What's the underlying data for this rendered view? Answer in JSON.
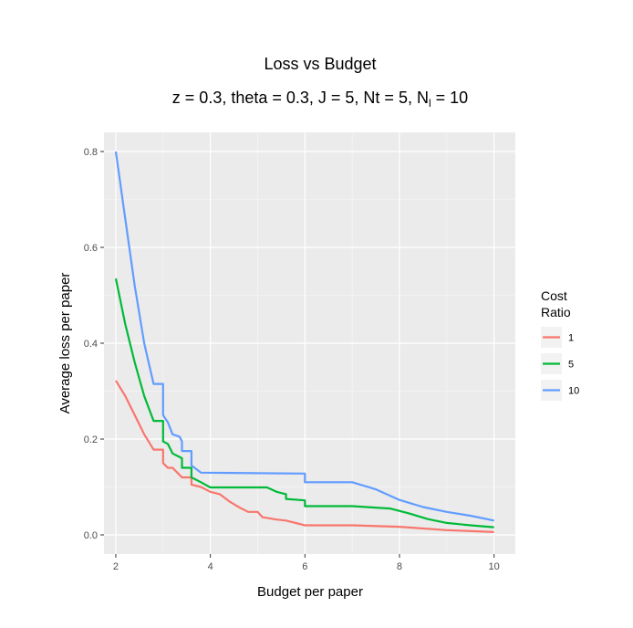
{
  "chart_data": {
    "type": "line",
    "title": "Loss vs Budget",
    "subtitle_parts": [
      "z = 0.3, theta = 0.3, J = 5, Nt = 5, N",
      "l",
      " = 10"
    ],
    "xlabel": "Budget per paper",
    "ylabel": "Average loss per paper",
    "xlim": [
      1.75,
      10.45
    ],
    "ylim": [
      -0.04,
      0.84
    ],
    "x_ticks": [
      2,
      4,
      6,
      8,
      10
    ],
    "x_tick_labels": [
      "2",
      "4",
      "6",
      "8",
      "10"
    ],
    "y_ticks": [
      0.0,
      0.2,
      0.4,
      0.6,
      0.8
    ],
    "y_tick_labels": [
      "0.0",
      "0.2",
      "0.4",
      "0.6",
      "0.8"
    ],
    "grid": true,
    "legend": {
      "title_lines": [
        "Cost",
        "Ratio"
      ],
      "placement": "right"
    },
    "series": [
      {
        "name": "1",
        "color": "#F8766D",
        "points": [
          [
            2,
            0.322
          ],
          [
            2.2,
            0.29
          ],
          [
            2.4,
            0.25
          ],
          [
            2.6,
            0.21
          ],
          [
            2.8,
            0.178
          ],
          [
            3.0,
            0.178
          ],
          [
            3.0,
            0.15
          ],
          [
            3.1,
            0.14
          ],
          [
            3.2,
            0.14
          ],
          [
            3.3,
            0.13
          ],
          [
            3.4,
            0.12
          ],
          [
            3.6,
            0.12
          ],
          [
            3.6,
            0.105
          ],
          [
            3.8,
            0.1
          ],
          [
            4.0,
            0.09
          ],
          [
            4.2,
            0.085
          ],
          [
            4.4,
            0.07
          ],
          [
            4.6,
            0.058
          ],
          [
            4.8,
            0.048
          ],
          [
            5.0,
            0.048
          ],
          [
            5.1,
            0.037
          ],
          [
            5.4,
            0.032
          ],
          [
            5.6,
            0.03
          ],
          [
            6.0,
            0.02
          ],
          [
            7.0,
            0.02
          ],
          [
            8.0,
            0.017
          ],
          [
            9.0,
            0.01
          ],
          [
            10,
            0.006
          ]
        ]
      },
      {
        "name": "5",
        "color": "#00BA38",
        "points": [
          [
            2,
            0.535
          ],
          [
            2.2,
            0.44
          ],
          [
            2.4,
            0.36
          ],
          [
            2.6,
            0.29
          ],
          [
            2.8,
            0.238
          ],
          [
            3.0,
            0.238
          ],
          [
            3.0,
            0.195
          ],
          [
            3.1,
            0.19
          ],
          [
            3.2,
            0.17
          ],
          [
            3.4,
            0.16
          ],
          [
            3.4,
            0.14
          ],
          [
            3.6,
            0.14
          ],
          [
            3.6,
            0.12
          ],
          [
            3.8,
            0.11
          ],
          [
            4.0,
            0.099
          ],
          [
            5.2,
            0.099
          ],
          [
            5.4,
            0.09
          ],
          [
            5.6,
            0.085
          ],
          [
            5.6,
            0.075
          ],
          [
            6.0,
            0.072
          ],
          [
            6.0,
            0.06
          ],
          [
            7.0,
            0.06
          ],
          [
            7.8,
            0.055
          ],
          [
            8.2,
            0.045
          ],
          [
            8.6,
            0.033
          ],
          [
            9.0,
            0.025
          ],
          [
            9.5,
            0.02
          ],
          [
            10,
            0.016
          ]
        ]
      },
      {
        "name": "10",
        "color": "#619CFF",
        "points": [
          [
            2,
            0.8
          ],
          [
            2.2,
            0.66
          ],
          [
            2.4,
            0.52
          ],
          [
            2.6,
            0.4
          ],
          [
            2.8,
            0.315
          ],
          [
            3.0,
            0.315
          ],
          [
            3.0,
            0.25
          ],
          [
            3.1,
            0.235
          ],
          [
            3.2,
            0.21
          ],
          [
            3.35,
            0.205
          ],
          [
            3.4,
            0.195
          ],
          [
            3.4,
            0.175
          ],
          [
            3.6,
            0.175
          ],
          [
            3.6,
            0.145
          ],
          [
            3.8,
            0.13
          ],
          [
            6.0,
            0.128
          ],
          [
            6.0,
            0.11
          ],
          [
            7.0,
            0.11
          ],
          [
            7.5,
            0.095
          ],
          [
            8.0,
            0.073
          ],
          [
            8.5,
            0.058
          ],
          [
            9.0,
            0.048
          ],
          [
            9.5,
            0.04
          ],
          [
            10,
            0.03
          ]
        ]
      }
    ]
  }
}
